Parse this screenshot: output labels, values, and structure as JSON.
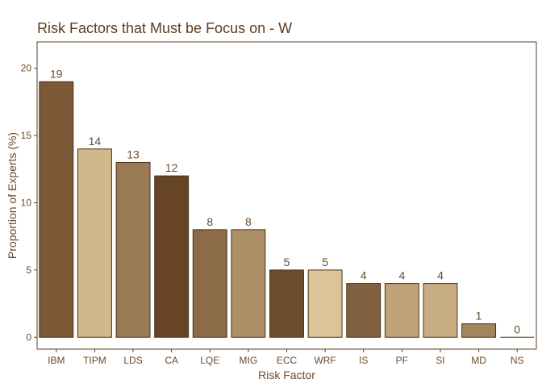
{
  "chart_data": {
    "type": "bar",
    "title": "Risk Factors that Must be Focus on -  W",
    "xlabel": "Risk Factor",
    "ylabel": "Proportion of Experts (%)",
    "ylim": [
      -0.8,
      22
    ],
    "yticks": [
      0,
      5,
      10,
      15,
      20
    ],
    "grid": false,
    "legend": "none",
    "categories": [
      "IBM",
      "TIPM",
      "LDS",
      "CA",
      "LQE",
      "MIG",
      "ECC",
      "WRF",
      "IS",
      "PF",
      "SI",
      "MD",
      "NS"
    ],
    "values": [
      19,
      14,
      13,
      12,
      8,
      8,
      5,
      5,
      4,
      4,
      4,
      1,
      0
    ],
    "colors": [
      "#7b5836",
      "#d1b78c",
      "#9a7a55",
      "#664425",
      "#8c6b48",
      "#ad8f68",
      "#6e4d2c",
      "#dbc498",
      "#826141",
      "#bfa27a",
      "#c8ad84",
      "#a2845d",
      "#b9a07a"
    ],
    "bar_outline": "#4a3117",
    "text_color": "#6b4a2b",
    "title_color": "#5c3d1e"
  }
}
